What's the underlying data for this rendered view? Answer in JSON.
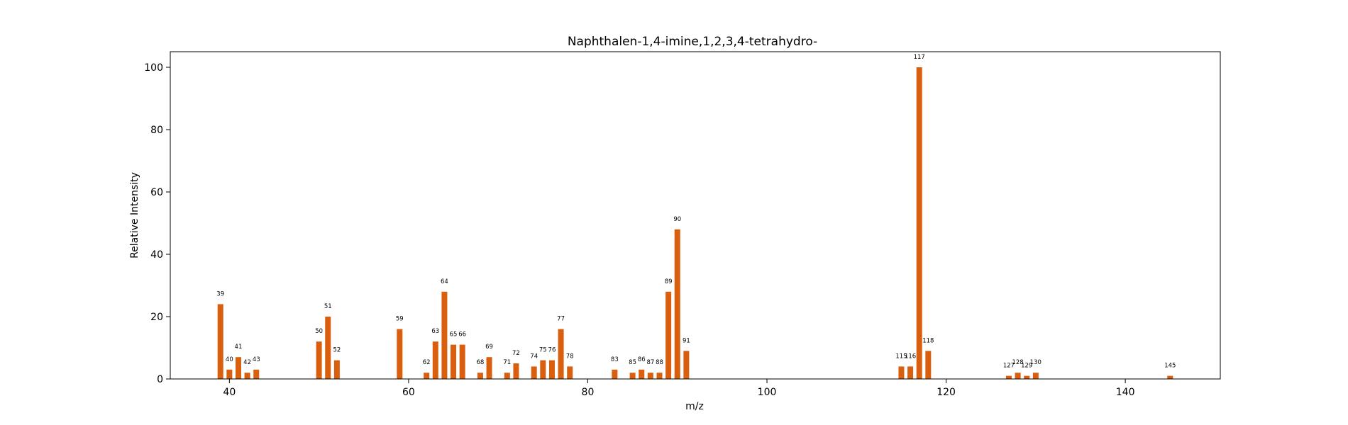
{
  "chart_data": {
    "type": "bar",
    "title": "Naphthalen-1,4-imine,1,2,3,4-tetrahydro-",
    "xlabel": "m/z",
    "ylabel": "Relative Intensity",
    "xlim": [
      33.4,
      150.6
    ],
    "ylim": [
      0,
      105
    ],
    "xticks": [
      40,
      60,
      80,
      100,
      120,
      140
    ],
    "yticks": [
      0,
      20,
      40,
      60,
      80,
      100
    ],
    "bar_color": "#d95f0e",
    "grid": false,
    "x": [
      39,
      40,
      41,
      42,
      43,
      50,
      51,
      52,
      59,
      62,
      63,
      64,
      65,
      66,
      68,
      69,
      71,
      72,
      74,
      75,
      76,
      77,
      78,
      83,
      85,
      86,
      87,
      88,
      89,
      90,
      91,
      115,
      116,
      117,
      118,
      127,
      128,
      129,
      130,
      145
    ],
    "values": [
      24,
      3,
      7,
      2,
      3,
      12,
      20,
      6,
      16,
      2,
      12,
      28,
      11,
      11,
      2,
      7,
      2,
      5,
      4,
      6,
      6,
      16,
      4,
      3,
      2,
      3,
      2,
      2,
      28,
      48,
      9,
      4,
      4,
      100,
      9,
      1,
      2,
      1,
      2,
      1
    ],
    "labels": [
      "39",
      "40",
      "41",
      "42",
      "43",
      "50",
      "51",
      "52",
      "59",
      "62",
      "63",
      "64",
      "65",
      "66",
      "68",
      "69",
      "71",
      "72",
      "74",
      "75",
      "76",
      "77",
      "78",
      "83",
      "85",
      "86",
      "87",
      "88",
      "89",
      "90",
      "91",
      "115",
      "116",
      "117",
      "118",
      "127",
      "128",
      "129",
      "130",
      "145"
    ]
  }
}
